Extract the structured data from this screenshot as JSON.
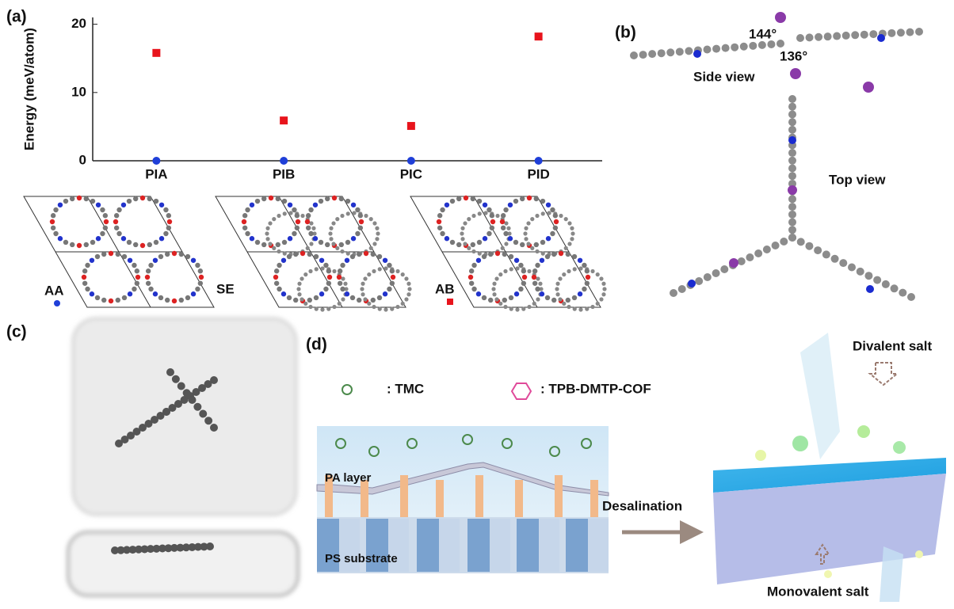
{
  "chart_data": {
    "type": "scatter",
    "y_label": "Energy (meV/atom)",
    "categories": [
      "PIA",
      "PIB",
      "PIC",
      "PID"
    ],
    "series": [
      {
        "name": "AA",
        "color": "#1f3fd8",
        "marker": "circle",
        "values": [
          0,
          0,
          0,
          0
        ]
      },
      {
        "name": "AB",
        "color": "#e8141c",
        "marker": "square",
        "values": [
          15.8,
          5.9,
          5.1,
          18.2
        ]
      }
    ],
    "ylim": [
      0,
      21
    ],
    "yticks": [
      0,
      10,
      20
    ],
    "grid": false
  },
  "panel_labels": [
    "(a)",
    "(b)",
    "(c)",
    "(d)"
  ],
  "stacking_label": "SE",
  "molecule": {
    "angle_top": "144°",
    "angle_bottom": "136°",
    "side_view": "Side view",
    "top_view": "Top view"
  },
  "schematic": {
    "tmc": ": TMC",
    "cof": ": TPB-DMTP-COF",
    "pa_layer": "PA layer",
    "ps_substrate": "PS substrate",
    "process": "Desalination",
    "divalent": "Divalent salt",
    "monovalent": "Monovalent salt"
  }
}
